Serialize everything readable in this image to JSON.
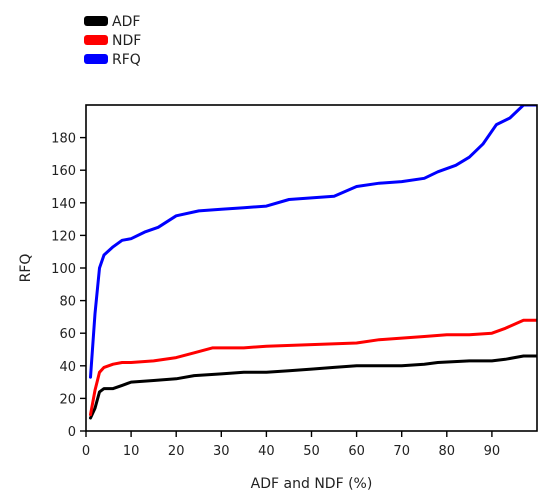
{
  "chart_data": {
    "type": "line",
    "xlabel": "ADF and NDF (%)",
    "ylabel": "RFQ",
    "xlim": [
      0,
      100
    ],
    "ylim": [
      0,
      200
    ],
    "xticks": [
      0,
      10,
      20,
      30,
      40,
      50,
      60,
      70,
      80,
      90
    ],
    "yticks": [
      0,
      20,
      40,
      60,
      80,
      100,
      120,
      140,
      160,
      180
    ],
    "grid": false,
    "legend": "top-left",
    "series": [
      {
        "name": "ADF",
        "color": "#000000",
        "points": [
          [
            1,
            8
          ],
          [
            2,
            14
          ],
          [
            3,
            24
          ],
          [
            4,
            26
          ],
          [
            6,
            26
          ],
          [
            8,
            28
          ],
          [
            10,
            30
          ],
          [
            15,
            31
          ],
          [
            20,
            32
          ],
          [
            24,
            34
          ],
          [
            30,
            35
          ],
          [
            35,
            36
          ],
          [
            40,
            36
          ],
          [
            45,
            37
          ],
          [
            50,
            38
          ],
          [
            55,
            39
          ],
          [
            60,
            40
          ],
          [
            65,
            40
          ],
          [
            70,
            40
          ],
          [
            75,
            41
          ],
          [
            78,
            42
          ],
          [
            85,
            43
          ],
          [
            90,
            43
          ],
          [
            93,
            44
          ],
          [
            97,
            46
          ],
          [
            100,
            46
          ]
        ]
      },
      {
        "name": "NDF",
        "color": "#ff0000",
        "points": [
          [
            1,
            10
          ],
          [
            2,
            25
          ],
          [
            3,
            36
          ],
          [
            4,
            39
          ],
          [
            6,
            41
          ],
          [
            8,
            42
          ],
          [
            10,
            42
          ],
          [
            15,
            43
          ],
          [
            20,
            45
          ],
          [
            24,
            48
          ],
          [
            28,
            51
          ],
          [
            35,
            51
          ],
          [
            40,
            52
          ],
          [
            50,
            53
          ],
          [
            60,
            54
          ],
          [
            65,
            56
          ],
          [
            70,
            57
          ],
          [
            75,
            58
          ],
          [
            80,
            59
          ],
          [
            85,
            59
          ],
          [
            90,
            60
          ],
          [
            93,
            63
          ],
          [
            97,
            68
          ],
          [
            100,
            68
          ]
        ]
      },
      {
        "name": "RFQ",
        "color": "#0000ff",
        "points": [
          [
            1,
            33
          ],
          [
            2,
            72
          ],
          [
            3,
            100
          ],
          [
            4,
            108
          ],
          [
            6,
            113
          ],
          [
            8,
            117
          ],
          [
            10,
            118
          ],
          [
            13,
            122
          ],
          [
            16,
            125
          ],
          [
            20,
            132
          ],
          [
            25,
            135
          ],
          [
            30,
            136
          ],
          [
            35,
            137
          ],
          [
            40,
            138
          ],
          [
            45,
            142
          ],
          [
            50,
            143
          ],
          [
            55,
            144
          ],
          [
            60,
            150
          ],
          [
            65,
            152
          ],
          [
            70,
            153
          ],
          [
            75,
            155
          ],
          [
            78,
            159
          ],
          [
            82,
            163
          ],
          [
            85,
            168
          ],
          [
            88,
            176
          ],
          [
            91,
            188
          ],
          [
            94,
            192
          ],
          [
            97,
            200
          ],
          [
            100,
            200
          ]
        ]
      }
    ]
  }
}
